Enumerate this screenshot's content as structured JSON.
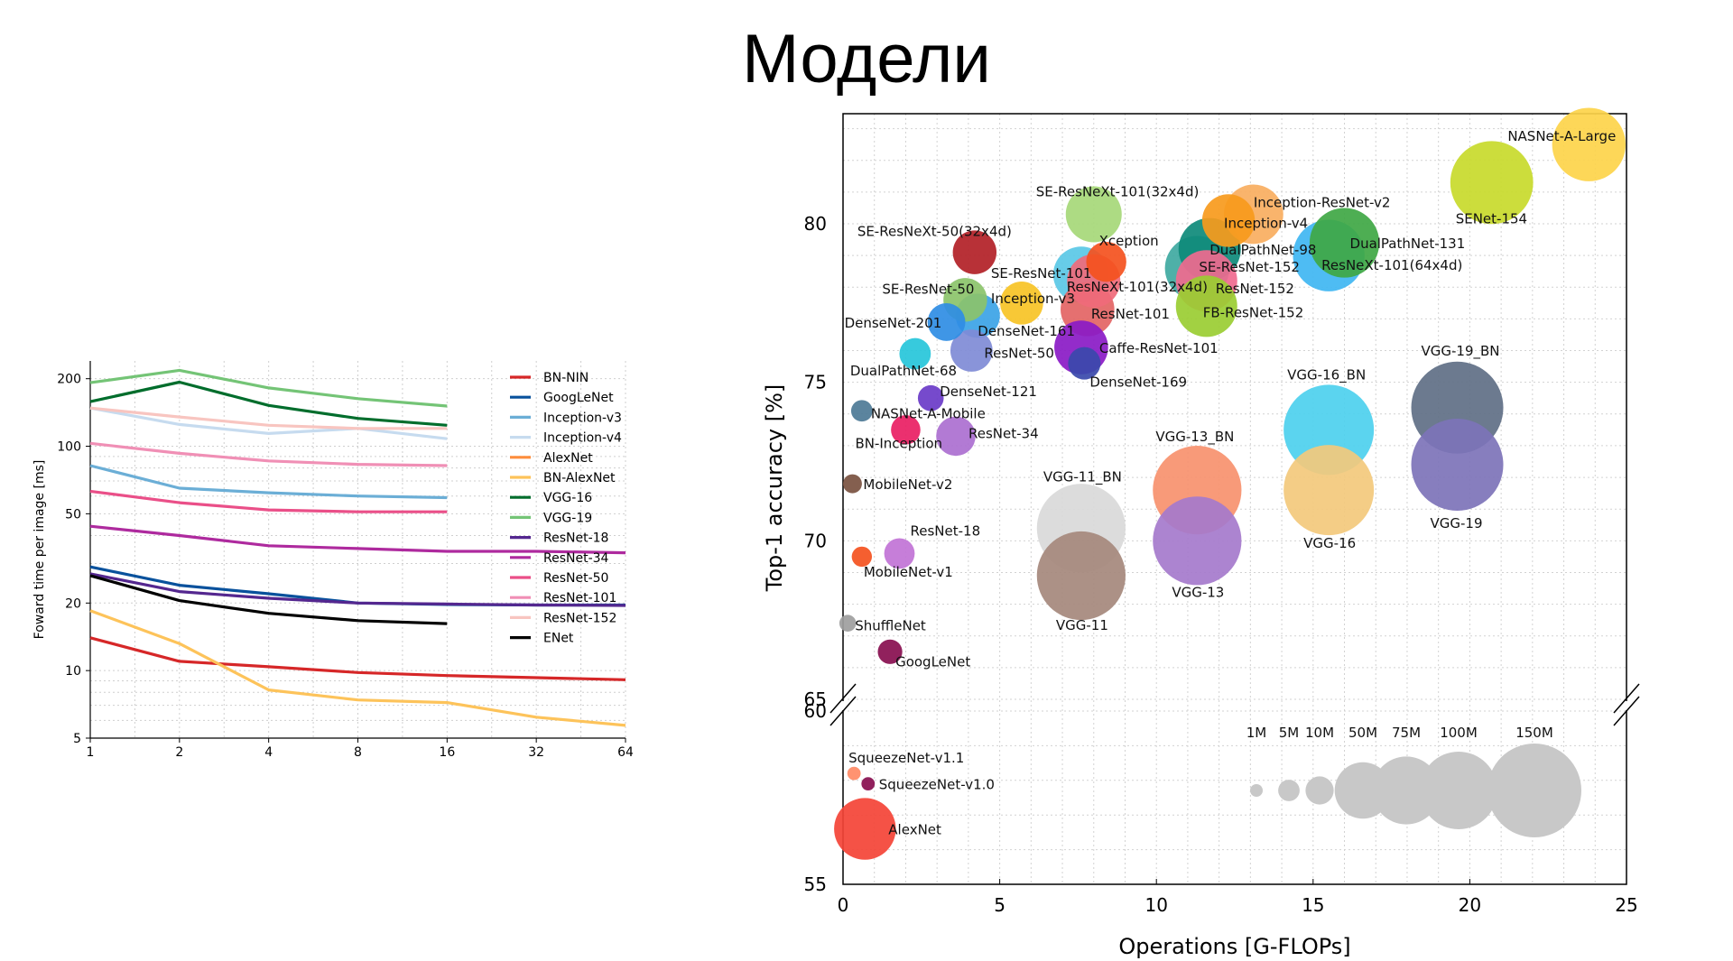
{
  "page": {
    "title": "Модели"
  },
  "chart_data": [
    {
      "type": "line",
      "title": "",
      "xlabel": "",
      "ylabel": "Foward time per image [ms]",
      "xscale": "log2",
      "yscale": "log",
      "x_ticks": [
        1,
        2,
        4,
        8,
        16,
        32,
        64
      ],
      "y_ticks": [
        5,
        10,
        20,
        50,
        100,
        200
      ],
      "xlim": [
        1,
        64
      ],
      "ylim": [
        5,
        240
      ],
      "grid": true,
      "legend_position": "right",
      "series": [
        {
          "name": "BN-NIN",
          "color": "#d62728",
          "x": [
            1,
            2,
            4,
            8,
            16,
            32,
            64
          ],
          "y": [
            14,
            11,
            10.4,
            9.8,
            9.5,
            9.3,
            9.1
          ]
        },
        {
          "name": "GoogLeNet",
          "color": "#08519c",
          "x": [
            1,
            2,
            4,
            8,
            16,
            32,
            64
          ],
          "y": [
            29,
            24,
            22,
            20,
            19.7,
            19.6,
            19.6
          ]
        },
        {
          "name": "Inception-v3",
          "color": "#6baed6",
          "x": [
            1,
            2,
            4,
            8,
            16
          ],
          "y": [
            82,
            65,
            62,
            60,
            59
          ]
        },
        {
          "name": "Inception-v4",
          "color": "#c6dbef",
          "x": [
            1,
            2,
            4,
            8,
            16
          ],
          "y": [
            148,
            125,
            114,
            120,
            108
          ]
        },
        {
          "name": "AlexNet",
          "color": "#fd8d3c",
          "x": [],
          "y": []
        },
        {
          "name": "BN-AlexNet",
          "color": "#fdc35a",
          "x": [
            1,
            2,
            4,
            8,
            16,
            32,
            64
          ],
          "y": [
            18.5,
            13.2,
            8.2,
            7.4,
            7.2,
            6.2,
            5.7
          ]
        },
        {
          "name": "VGG-16",
          "color": "#006d2c",
          "x": [
            1,
            2,
            4,
            8,
            16
          ],
          "y": [
            158,
            193,
            152,
            133,
            124
          ]
        },
        {
          "name": "VGG-19",
          "color": "#74c476",
          "x": [
            1,
            2,
            4,
            8,
            16
          ],
          "y": [
            192,
            218,
            182,
            163,
            151
          ]
        },
        {
          "name": "ResNet-18",
          "color": "#54278f",
          "x": [
            1,
            2,
            4,
            8,
            16,
            32,
            64
          ],
          "y": [
            27,
            22.5,
            21,
            20,
            19.8,
            19.6,
            19.5
          ]
        },
        {
          "name": "ResNet-34",
          "color": "#ae2a9e",
          "x": [
            1,
            2,
            4,
            8,
            16,
            32,
            64
          ],
          "y": [
            44,
            40,
            36,
            35,
            34,
            34,
            33.5
          ]
        },
        {
          "name": "ResNet-50",
          "color": "#ea4f88",
          "x": [
            1,
            2,
            4,
            8,
            16
          ],
          "y": [
            63,
            56,
            52,
            51,
            51
          ]
        },
        {
          "name": "ResNet-101",
          "color": "#f08fb5",
          "x": [
            1,
            2,
            4,
            8,
            16
          ],
          "y": [
            103,
            93,
            86,
            83,
            82
          ]
        },
        {
          "name": "ResNet-152",
          "color": "#f8c5c0",
          "x": [
            1,
            2,
            4,
            8,
            16
          ],
          "y": [
            148,
            135,
            124,
            120,
            120
          ]
        },
        {
          "name": "ENet",
          "color": "#000000",
          "x": [
            1,
            2,
            4,
            8,
            16
          ],
          "y": [
            26.5,
            20.5,
            18,
            16.7,
            16.2
          ]
        }
      ]
    },
    {
      "type": "scatter",
      "title": "",
      "xlabel": "Operations [G-FLOPs]",
      "ylabel": "Top-1 accuracy [%]",
      "xlim": [
        0,
        25
      ],
      "ylim": [
        55,
        84
      ],
      "axis_break": [
        60,
        65
      ],
      "x_ticks": [
        0,
        5,
        10,
        15,
        20,
        25
      ],
      "y_ticks_top": [
        65,
        70,
        75,
        80
      ],
      "y_ticks_bottom": [
        55,
        60
      ],
      "grid": true,
      "size_legend": {
        "labels": [
          "1M",
          "5M",
          "10M",
          "50M",
          "75M",
          "100M",
          "150M"
        ],
        "params_m": [
          1,
          5,
          10,
          50,
          75,
          100,
          150
        ],
        "color": "#c8c8c8"
      },
      "points": [
        {
          "name": "NASNet-A-Large",
          "x": 23.8,
          "y": 82.5,
          "params_m": 89,
          "color": "#fdd44a"
        },
        {
          "name": "SENet-154",
          "x": 20.7,
          "y": 81.3,
          "params_m": 115,
          "color": "#c8da2b"
        },
        {
          "name": "SE-ResNeXt-101(32x4d)",
          "x": 8.0,
          "y": 80.3,
          "params_m": 49,
          "color": "#a6d878"
        },
        {
          "name": "Inception-ResNet-v2",
          "x": 13.1,
          "y": 80.3,
          "params_m": 56,
          "color": "#f8ae5f"
        },
        {
          "name": "Inception-v4",
          "x": 12.3,
          "y": 80.1,
          "params_m": 43,
          "color": "#f79a1c"
        },
        {
          "name": "DualPathNet-131",
          "x": 16.0,
          "y": 79.4,
          "params_m": 79,
          "color": "#3fa744"
        },
        {
          "name": "DualPathNet-98",
          "x": 11.7,
          "y": 79.2,
          "params_m": 62,
          "color": "#0e8a7a"
        },
        {
          "name": "SE-ResNeXt-50(32x4d)",
          "x": 4.2,
          "y": 79.1,
          "params_m": 28,
          "color": "#b21f26"
        },
        {
          "name": "ResNeXt-101(64x4d)",
          "x": 15.5,
          "y": 79.0,
          "params_m": 84,
          "color": "#3fb6f2"
        },
        {
          "name": "Xception",
          "x": 8.4,
          "y": 78.8,
          "params_m": 23,
          "color": "#f4511e"
        },
        {
          "name": "SE-ResNet-152",
          "x": 11.3,
          "y": 78.6,
          "params_m": 67,
          "color": "#3fa9a1"
        },
        {
          "name": "SE-ResNet-101",
          "x": 7.6,
          "y": 78.4,
          "params_m": 49,
          "color": "#5ac8e6"
        },
        {
          "name": "ResNeXt-101(32x4d)",
          "x": 8.0,
          "y": 78.2,
          "params_m": 44,
          "color": "#f06a7a"
        },
        {
          "name": "ResNet-152",
          "x": 11.6,
          "y": 78.2,
          "params_m": 60,
          "color": "#f06a8f"
        },
        {
          "name": "SE-ResNet-50",
          "x": 3.9,
          "y": 77.6,
          "params_m": 28,
          "color": "#8bc36a"
        },
        {
          "name": "Inception-v3",
          "x": 5.7,
          "y": 77.5,
          "params_m": 27,
          "color": "#f7c325"
        },
        {
          "name": "FB-ResNet-152",
          "x": 11.6,
          "y": 77.4,
          "params_m": 60,
          "color": "#9acd32"
        },
        {
          "name": "ResNet-101",
          "x": 7.8,
          "y": 77.3,
          "params_m": 45,
          "color": "#e36464"
        },
        {
          "name": "DenseNet-161",
          "x": 4.3,
          "y": 77.1,
          "params_m": 29,
          "color": "#3ba3e6"
        },
        {
          "name": "DenseNet-201",
          "x": 3.3,
          "y": 76.9,
          "params_m": 20,
          "color": "#2f8de4"
        },
        {
          "name": "Caffe-ResNet-101",
          "x": 7.6,
          "y": 76.1,
          "params_m": 45,
          "color": "#8a1ac5"
        },
        {
          "name": "ResNet-50",
          "x": 4.1,
          "y": 76.0,
          "params_m": 26,
          "color": "#7f8bd6"
        },
        {
          "name": "DualPathNet-68",
          "x": 2.3,
          "y": 75.9,
          "params_m": 13,
          "color": "#26c6da"
        },
        {
          "name": "DenseNet-169",
          "x": 7.7,
          "y": 75.6,
          "params_m": 14,
          "color": "#3949ab"
        },
        {
          "name": "DenseNet-121",
          "x": 2.8,
          "y": 74.5,
          "params_m": 8,
          "color": "#6a3bc8"
        },
        {
          "name": "NASNet-A-Mobile",
          "x": 0.6,
          "y": 74.1,
          "params_m": 5,
          "color": "#4d7a96"
        },
        {
          "name": "BN-Inception",
          "x": 2.0,
          "y": 73.5,
          "params_m": 11,
          "color": "#e91e63"
        },
        {
          "name": "ResNet-34",
          "x": 3.6,
          "y": 73.3,
          "params_m": 22,
          "color": "#ab6fd0"
        },
        {
          "name": "VGG-19_BN",
          "x": 19.6,
          "y": 74.2,
          "params_m": 144,
          "color": "#5f6f85"
        },
        {
          "name": "VGG-19",
          "x": 19.6,
          "y": 72.4,
          "params_m": 144,
          "color": "#7d73b8"
        },
        {
          "name": "VGG-16_BN",
          "x": 15.5,
          "y": 73.5,
          "params_m": 138,
          "color": "#4dd0ee"
        },
        {
          "name": "VGG-16",
          "x": 15.5,
          "y": 71.6,
          "params_m": 138,
          "color": "#f3c97c"
        },
        {
          "name": "VGG-13_BN",
          "x": 11.3,
          "y": 71.6,
          "params_m": 133,
          "color": "#f7916e"
        },
        {
          "name": "VGG-13",
          "x": 11.3,
          "y": 70.0,
          "params_m": 133,
          "color": "#a57acc"
        },
        {
          "name": "VGG-11_BN",
          "x": 7.6,
          "y": 70.4,
          "params_m": 133,
          "color": "#d9d9d9"
        },
        {
          "name": "VGG-11",
          "x": 7.6,
          "y": 68.9,
          "params_m": 133,
          "color": "#a5887c"
        },
        {
          "name": "MobileNet-v2",
          "x": 0.3,
          "y": 71.8,
          "params_m": 3.5,
          "color": "#7a5140"
        },
        {
          "name": "ResNet-18",
          "x": 1.8,
          "y": 69.6,
          "params_m": 12,
          "color": "#c173d6"
        },
        {
          "name": "MobileNet-v1",
          "x": 0.6,
          "y": 69.5,
          "params_m": 4.2,
          "color": "#f4511e"
        },
        {
          "name": "ShuffleNet",
          "x": 0.15,
          "y": 67.4,
          "params_m": 2.5,
          "color": "#9e9e9e"
        },
        {
          "name": "GoogLeNet",
          "x": 1.5,
          "y": 66.5,
          "params_m": 7,
          "color": "#880e4f"
        },
        {
          "name": "SqueezeNet-v1.1",
          "x": 0.35,
          "y": 58.2,
          "params_m": 1.2,
          "color": "#ff8a65"
        },
        {
          "name": "SqueezeNet-v1.0",
          "x": 0.8,
          "y": 57.9,
          "params_m": 1.2,
          "color": "#880e4f"
        },
        {
          "name": "AlexNet",
          "x": 0.7,
          "y": 56.6,
          "params_m": 61,
          "color": "#f44336"
        }
      ]
    }
  ]
}
